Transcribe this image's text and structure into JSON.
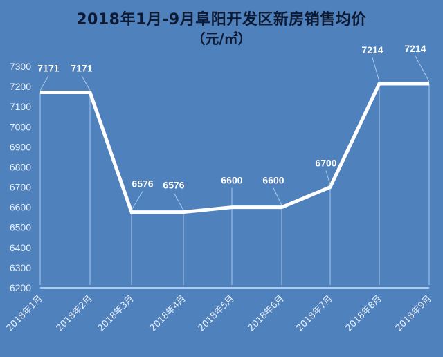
{
  "title": {
    "line1": "2018年1月-9月阜阳开发区新房销售均价",
    "line2": "（元/㎡）"
  },
  "colors": {
    "background": "#4f81bd",
    "line": "#ffffff",
    "title": "#0d1a33",
    "tick": "#e8f0fa"
  },
  "chart_data": {
    "type": "line",
    "title": "2018年1月-9月阜阳开发区新房销售均价（元/㎡）",
    "xlabel": "",
    "ylabel": "",
    "categories": [
      "2018年1月",
      "2018年2月",
      "2018年3月",
      "2018年4月",
      "2018年5月",
      "2018年6月",
      "2018年7月",
      "2018年8月",
      "2018年9月"
    ],
    "values": [
      7171,
      7171,
      6576,
      6576,
      6600,
      6600,
      6700,
      7214,
      7214
    ],
    "data_labels": [
      "7171",
      "7171",
      "6576",
      "6576",
      "6600",
      "6600",
      "6700",
      "7214",
      "7214"
    ],
    "ylim": [
      6200,
      7300
    ],
    "yticks": [
      7300,
      7200,
      7100,
      7000,
      6900,
      6800,
      6700,
      6600,
      6500,
      6400,
      6300,
      6200
    ],
    "grid": false,
    "drop_lines": true,
    "legend": "none"
  }
}
